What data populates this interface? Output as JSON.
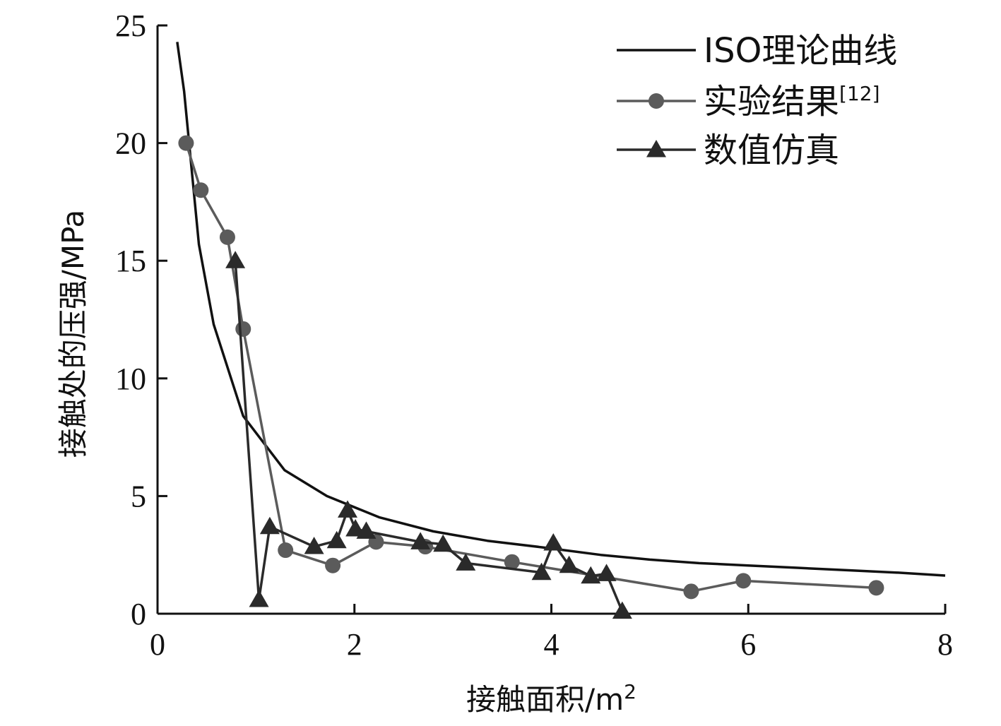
{
  "chart_data": {
    "type": "line",
    "xlabel": "接触面积/m",
    "xlabel_sup": "2",
    "ylabel": "接触处的压强/MPa",
    "xlim": [
      0,
      8
    ],
    "ylim": [
      0,
      25
    ],
    "xticks": [
      0,
      2,
      4,
      6,
      8
    ],
    "yticks": [
      0,
      5,
      10,
      15,
      20,
      25
    ],
    "legend_position": "top-right",
    "series": [
      {
        "name": "ISO理论曲线",
        "name_sup": "",
        "marker": "none",
        "color": "#111111",
        "x": [
          0.2,
          0.27,
          0.42,
          0.57,
          0.87,
          1.29,
          1.72,
          2.25,
          2.8,
          3.35,
          3.95,
          4.5,
          5.0,
          5.5,
          6.0,
          6.5,
          7.0,
          7.5,
          8.0
        ],
        "y": [
          24.3,
          22.2,
          15.7,
          12.3,
          8.4,
          6.1,
          5.0,
          4.1,
          3.5,
          3.1,
          2.8,
          2.5,
          2.3,
          2.15,
          2.05,
          1.95,
          1.85,
          1.75,
          1.62
        ]
      },
      {
        "name": "实验结果",
        "name_sup": "[12]",
        "marker": "circle",
        "color": "#5b5b5b",
        "x": [
          0.29,
          0.44,
          0.71,
          0.87,
          1.3,
          1.78,
          2.22,
          2.72,
          3.6,
          5.42,
          5.95,
          7.3
        ],
        "y": [
          20.0,
          18.0,
          16.0,
          12.1,
          2.7,
          2.05,
          3.05,
          2.85,
          2.2,
          0.95,
          1.4,
          1.1
        ]
      },
      {
        "name": "数值仿真",
        "name_sup": "",
        "marker": "triangle",
        "color": "#2a2a2a",
        "x": [
          0.79,
          1.03,
          1.14,
          1.59,
          1.82,
          1.93,
          2.01,
          2.12,
          2.67,
          2.9,
          3.13,
          3.9,
          4.02,
          4.18,
          4.4,
          4.56,
          4.72
        ],
        "y": [
          15.0,
          0.6,
          3.7,
          2.85,
          3.1,
          4.4,
          3.6,
          3.5,
          3.05,
          2.95,
          2.15,
          1.75,
          3.0,
          2.05,
          1.6,
          1.7,
          0.1
        ]
      }
    ]
  }
}
